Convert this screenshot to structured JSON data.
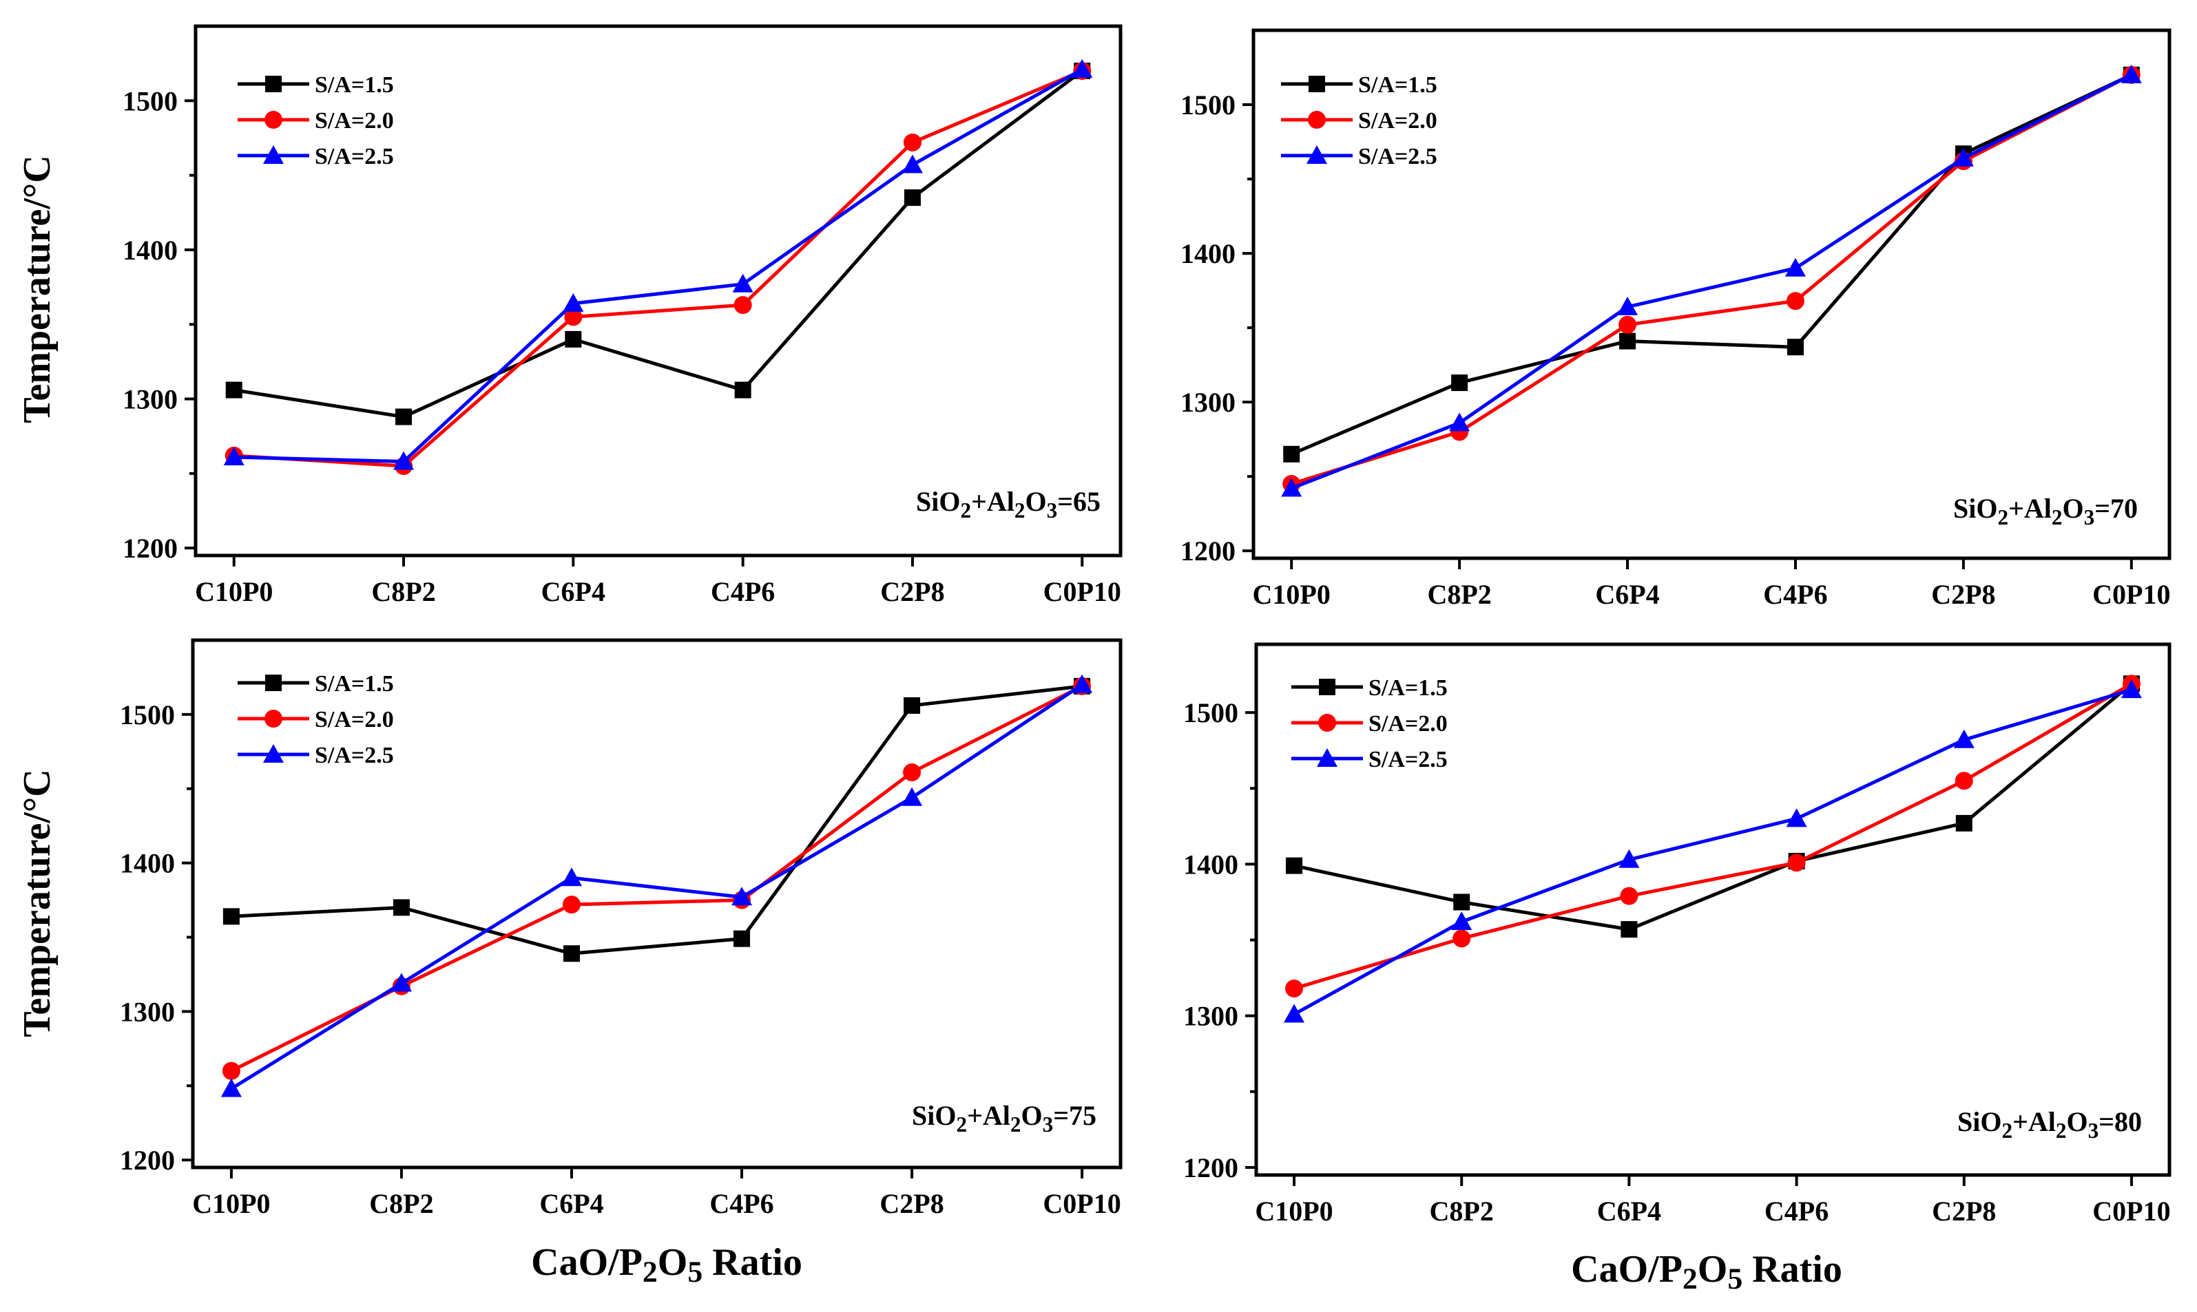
{
  "figure": {
    "y_axis_label": "Temperature/°C",
    "x_axis_label": "CaO/P2O5 Ratio"
  },
  "chart_data": [
    {
      "type": "line",
      "title": "",
      "annotation": "SiO2+Al2O3=65",
      "xlabel": "",
      "ylabel": "Temperature/°C",
      "categories": [
        "C10P0",
        "C8P2",
        "C6P4",
        "C4P6",
        "C2P8",
        "C0P10"
      ],
      "ylim": [
        1195,
        1550
      ],
      "yticks": [
        1200,
        1300,
        1400,
        1500
      ],
      "legend_position": "top-left",
      "series": [
        {
          "name": "S/A=1.5",
          "color": "#000000",
          "marker": "square",
          "values": [
            1306,
            1288,
            1340,
            1306,
            1435,
            1520
          ]
        },
        {
          "name": "S/A=2.0",
          "color": "#ff0000",
          "marker": "circle",
          "values": [
            1262,
            1255,
            1355,
            1363,
            1472,
            1520
          ]
        },
        {
          "name": "S/A=2.5",
          "color": "#0000ff",
          "marker": "triangle",
          "values": [
            1261,
            1258,
            1364,
            1377,
            1457,
            1521
          ]
        }
      ]
    },
    {
      "type": "line",
      "title": "",
      "annotation": "SiO2+Al2O3=70",
      "xlabel": "",
      "ylabel": "",
      "categories": [
        "C10P0",
        "C8P2",
        "C6P4",
        "C4P6",
        "C2P8",
        "C0P10"
      ],
      "ylim": [
        1195,
        1550
      ],
      "yticks": [
        1200,
        1300,
        1400,
        1500
      ],
      "legend_position": "top-left",
      "series": [
        {
          "name": "S/A=1.5",
          "color": "#000000",
          "marker": "square",
          "values": [
            1265,
            1313,
            1341,
            1337,
            1467,
            1520
          ]
        },
        {
          "name": "S/A=2.0",
          "color": "#ff0000",
          "marker": "circle",
          "values": [
            1245,
            1280,
            1352,
            1368,
            1462,
            1520
          ]
        },
        {
          "name": "S/A=2.5",
          "color": "#0000ff",
          "marker": "triangle",
          "values": [
            1242,
            1286,
            1364,
            1390,
            1464,
            1520
          ]
        }
      ]
    },
    {
      "type": "line",
      "title": "",
      "annotation": "SiO2+Al2O3=75",
      "xlabel": "CaO/P2O5 Ratio",
      "ylabel": "Temperature/°C",
      "categories": [
        "C10P0",
        "C8P2",
        "C6P4",
        "C4P6",
        "C2P8",
        "C0P10"
      ],
      "ylim": [
        1195,
        1550
      ],
      "yticks": [
        1200,
        1300,
        1400,
        1500
      ],
      "legend_position": "top-left",
      "series": [
        {
          "name": "S/A=1.5",
          "color": "#000000",
          "marker": "square",
          "values": [
            1364,
            1370,
            1339,
            1349,
            1506,
            1519
          ]
        },
        {
          "name": "S/A=2.0",
          "color": "#ff0000",
          "marker": "circle",
          "values": [
            1260,
            1317,
            1372,
            1375,
            1461,
            1519
          ]
        },
        {
          "name": "S/A=2.5",
          "color": "#0000ff",
          "marker": "triangle",
          "values": [
            1248,
            1319,
            1390,
            1377,
            1444,
            1520
          ]
        }
      ]
    },
    {
      "type": "line",
      "title": "",
      "annotation": "SiO2+Al2O3=80",
      "xlabel": "CaO/P2O5 Ratio",
      "ylabel": "",
      "categories": [
        "C10P0",
        "C8P2",
        "C6P4",
        "C4P6",
        "C2P8",
        "C0P10"
      ],
      "ylim": [
        1195,
        1545
      ],
      "yticks": [
        1200,
        1300,
        1400,
        1500
      ],
      "legend_position": "top-left",
      "series": [
        {
          "name": "S/A=1.5",
          "color": "#000000",
          "marker": "square",
          "values": [
            1399,
            1375,
            1357,
            1402,
            1427,
            1519
          ]
        },
        {
          "name": "S/A=2.0",
          "color": "#ff0000",
          "marker": "circle",
          "values": [
            1318,
            1351,
            1379,
            1401,
            1455,
            1519
          ]
        },
        {
          "name": "S/A=2.5",
          "color": "#0000ff",
          "marker": "triangle",
          "values": [
            1301,
            1362,
            1403,
            1430,
            1482,
            1515
          ]
        }
      ]
    }
  ]
}
